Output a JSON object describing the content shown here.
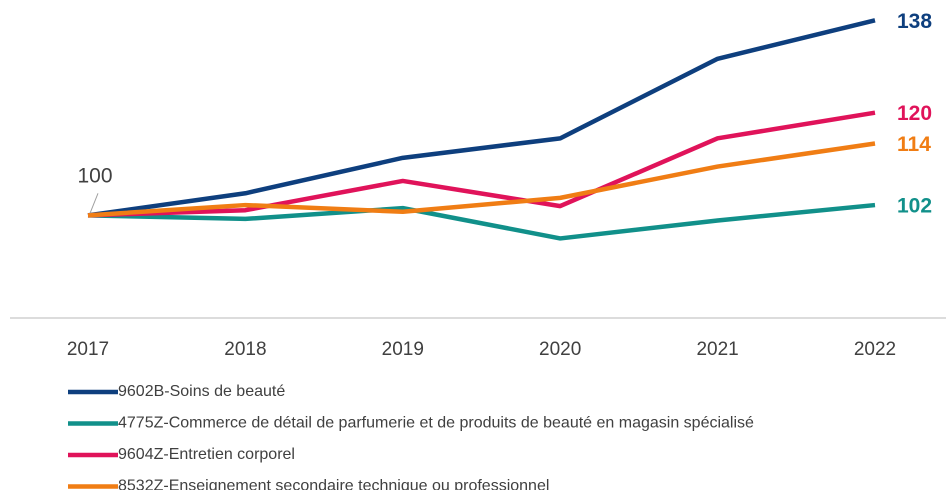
{
  "chart_data": {
    "type": "line",
    "categories": [
      "2017",
      "2018",
      "2019",
      "2020",
      "2021",
      "2022"
    ],
    "series": [
      {
        "name": "9602B-Soins de beauté",
        "color": "#0e3f7e",
        "values": [
          100,
          104.3,
          111.2,
          115,
          130.5,
          138
        ]
      },
      {
        "name": "4775Z-Commerce de détail de parfumerie et de produits de beauté en magasin spécialisé",
        "color": "#11908a",
        "values": [
          100,
          99.3,
          101.4,
          95.5,
          99,
          102
        ]
      },
      {
        "name": "9604Z-Entretien corporel",
        "color": "#e0135a",
        "values": [
          100,
          101,
          106.7,
          101.8,
          115,
          120
        ]
      },
      {
        "name": "8532Z-Enseignement secondaire technique ou professionnel",
        "color": "#f07d14",
        "values": [
          100,
          102,
          100.7,
          103.4,
          109.5,
          114
        ]
      }
    ],
    "ylim": [
      80,
      140
    ]
  }
}
